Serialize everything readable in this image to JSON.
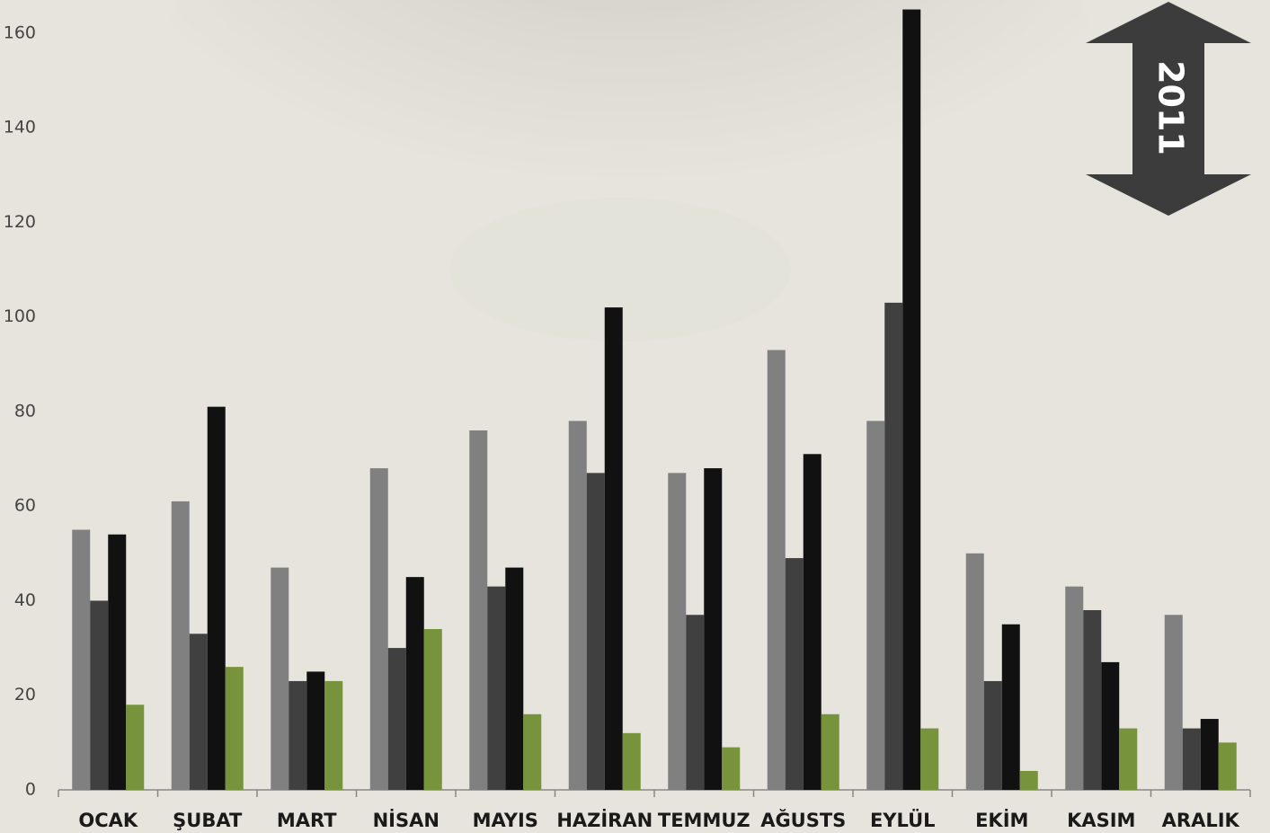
{
  "chart_data": {
    "type": "bar",
    "annotation": "2011",
    "categories": [
      "OCAK",
      "ŞUBAT",
      "MART",
      "NİSAN",
      "MAYIS",
      "HAZİRAN",
      "TEMMUZ",
      "AĞUSTS",
      "EYLÜL",
      "EKİM",
      "KASIM",
      "ARALIK"
    ],
    "series": [
      {
        "color": "#808080",
        "values": [
          55,
          61,
          47,
          68,
          76,
          78,
          67,
          93,
          78,
          50,
          43,
          37
        ]
      },
      {
        "color": "#404040",
        "values": [
          40,
          33,
          23,
          30,
          43,
          67,
          37,
          49,
          103,
          23,
          38,
          13
        ]
      },
      {
        "color": "#111111",
        "values": [
          54,
          81,
          25,
          45,
          47,
          102,
          68,
          71,
          165,
          35,
          27,
          15
        ]
      },
      {
        "color": "#77933c",
        "values": [
          18,
          26,
          23,
          34,
          16,
          12,
          9,
          16,
          13,
          4,
          13,
          10
        ]
      }
    ],
    "ylim": [
      0,
      167
    ],
    "yticks": [
      0,
      20,
      40,
      60,
      80,
      100,
      120,
      140,
      160
    ],
    "grid": false
  }
}
